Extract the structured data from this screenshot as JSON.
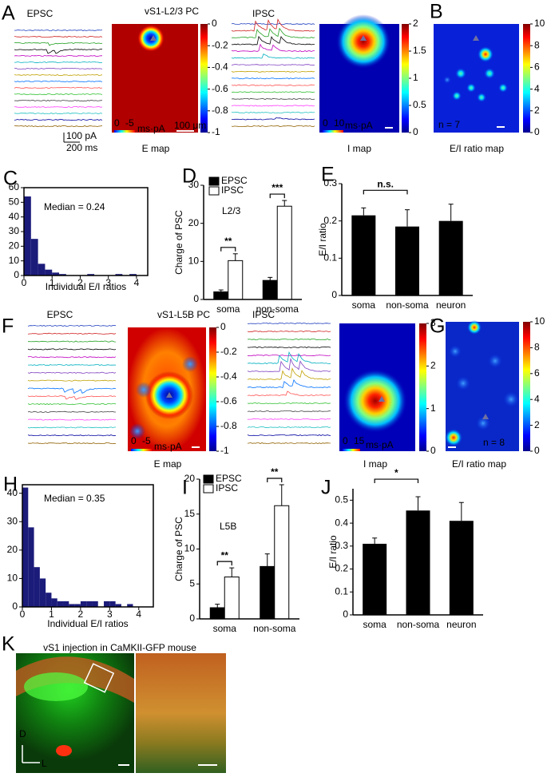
{
  "figure": {
    "A": {
      "label": "A",
      "title": "vS1-L2/3 PC",
      "epsc": "EPSC",
      "ipsc": "IPSC",
      "scale_pa": "100 pA",
      "scale_ms": "200 ms",
      "e_map": "E map",
      "i_map": "I map",
      "e_range": [
        "0",
        "-5"
      ],
      "i_range": [
        "0",
        "10"
      ],
      "unit": "ms·pA",
      "scale_um": "100 μm",
      "e_colorbar": [
        0,
        -0.2,
        -0.4,
        -0.6,
        -0.8,
        -1
      ],
      "i_colorbar": [
        2,
        1.5,
        1,
        0.5,
        0
      ]
    },
    "B": {
      "label": "B",
      "n": "n = 7",
      "map": "E/I ratio map",
      "colorbar": [
        10,
        8,
        6,
        4,
        2,
        0
      ]
    },
    "F": {
      "label": "F",
      "title": "vS1-L5B PC",
      "epsc": "EPSC",
      "ipsc": "IPSC",
      "e_map": "E map",
      "i_map": "I map",
      "e_range": [
        "0",
        "-5"
      ],
      "i_range": [
        "0",
        "15"
      ],
      "unit": "ms·pA",
      "e_colorbar": [
        0,
        -0.2,
        -0.4,
        -0.6,
        -0.8,
        -1
      ],
      "i_colorbar": [
        3,
        2,
        1,
        0
      ]
    },
    "G": {
      "label": "G",
      "n": "n = 8",
      "map": "E/I ratio map",
      "colorbar": [
        10,
        8,
        6,
        4,
        2,
        0
      ]
    },
    "K": {
      "label": "K",
      "title": "vS1 injection in CaMKII-GFP mouse",
      "d": "D",
      "l": "L"
    }
  },
  "chart_data": [
    {
      "type": "histogram",
      "label": "C",
      "bins": [
        0,
        0.25,
        0.5,
        0.75,
        1,
        1.25,
        1.5,
        1.75,
        2,
        2.25,
        2.5,
        2.75,
        3,
        3.25,
        3.5,
        3.75,
        4
      ],
      "values": [
        54,
        25,
        8,
        4,
        2,
        1,
        0,
        0,
        0,
        1,
        0,
        0,
        0,
        1,
        0,
        1
      ],
      "color": "#1b1b7a",
      "xlim": [
        0,
        4.4
      ],
      "ylim": [
        0,
        60
      ],
      "xticks": [
        0,
        1,
        2,
        3,
        4
      ],
      "yticks": [
        0,
        10,
        20,
        30,
        40,
        50,
        60
      ],
      "xlabel": "Individual E/I ratios",
      "annotation": "Median = 0.24"
    },
    {
      "type": "bar",
      "label": "D",
      "categories": [
        "soma",
        "non-soma"
      ],
      "series": [
        {
          "name": "EPSC",
          "color": "#000000",
          "values": [
            2,
            5
          ],
          "errors": [
            0.5,
            0.8
          ]
        },
        {
          "name": "IPSC",
          "color": "#ffffff",
          "values": [
            10.2,
            24.5
          ],
          "errors": [
            1.8,
            1.5
          ]
        }
      ],
      "pair_labels": [
        "**",
        "***"
      ],
      "ylim": [
        0,
        30
      ],
      "yticks": [
        0,
        10,
        20,
        30
      ],
      "ylabel": "Charge of PSC",
      "annotation": "L2/3"
    },
    {
      "type": "bar",
      "label": "E",
      "categories": [
        "soma",
        "non-soma",
        "neuron"
      ],
      "values": [
        0.215,
        0.185,
        0.2
      ],
      "errors": [
        0.02,
        0.045,
        0.045
      ],
      "color": "#000000",
      "brackets": [
        {
          "text": "n.s.",
          "from": "soma",
          "to": "non-soma"
        }
      ],
      "ylim": [
        0,
        0.3
      ],
      "yticks": [
        0,
        0.1,
        0.2,
        0.3
      ],
      "ylabel": "E/I ratio"
    },
    {
      "type": "histogram",
      "label": "H",
      "bins": [
        0,
        0.2,
        0.4,
        0.6,
        0.8,
        1,
        1.2,
        1.4,
        1.6,
        1.8,
        2,
        2.2,
        2.4,
        2.6,
        2.8,
        3,
        3.2,
        3.4,
        3.6,
        3.8,
        4
      ],
      "values": [
        42,
        28,
        14,
        10,
        5,
        3,
        2,
        2,
        1,
        1,
        2,
        2,
        2,
        0,
        2,
        2,
        1,
        0,
        1,
        0
      ],
      "color": "#1b1b7a",
      "xlim": [
        0,
        4.5
      ],
      "ylim": [
        0,
        43
      ],
      "xticks": [
        0,
        1,
        2,
        3,
        4
      ],
      "yticks": [
        0,
        10,
        20,
        30,
        40
      ],
      "xlabel": "Individual E/I ratios",
      "annotation": "Median = 0.35"
    },
    {
      "type": "bar",
      "label": "I",
      "categories": [
        "soma",
        "non-soma"
      ],
      "series": [
        {
          "name": "EPSC",
          "color": "#000000",
          "values": [
            1.6,
            7.5
          ],
          "errors": [
            0.5,
            1.8
          ]
        },
        {
          "name": "IPSC",
          "color": "#ffffff",
          "values": [
            6,
            16.2
          ],
          "errors": [
            1.3,
            3
          ]
        }
      ],
      "pair_labels": [
        "**",
        "**"
      ],
      "ylim": [
        0,
        20
      ],
      "yticks": [
        0,
        5,
        10,
        15,
        20
      ],
      "ylabel": "Charge of PSC",
      "annotation": "L5B"
    },
    {
      "type": "bar",
      "label": "J",
      "categories": [
        "soma",
        "non-soma",
        "neuron"
      ],
      "values": [
        0.31,
        0.455,
        0.41
      ],
      "errors": [
        0.025,
        0.06,
        0.08
      ],
      "color": "#000000",
      "brackets": [
        {
          "text": "*",
          "from": "soma",
          "to": "non-soma"
        }
      ],
      "ylim": [
        0,
        0.55
      ],
      "yticks": [
        0,
        0.1,
        0.2,
        0.3,
        0.4,
        0.5
      ],
      "ylabel": "E/I ratio"
    }
  ]
}
